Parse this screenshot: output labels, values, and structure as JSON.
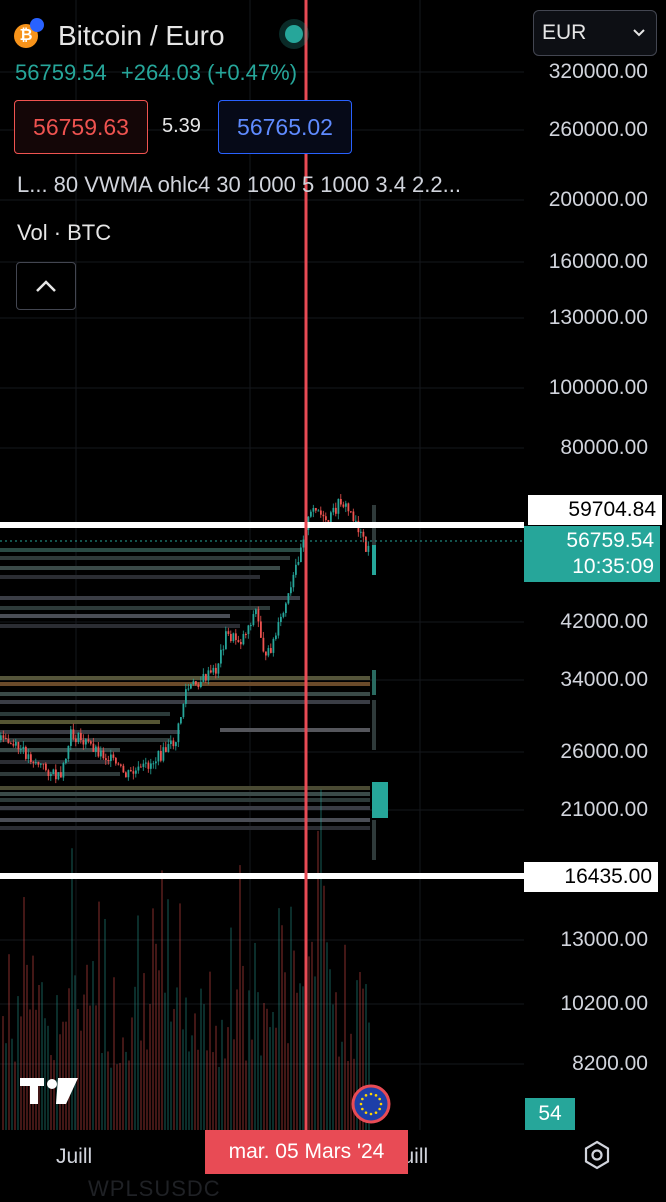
{
  "header": {
    "coin_glyph": "₿",
    "symbol_title": "Bitcoin / Euro",
    "last_price": "56759.54",
    "change": "+264.03 (+0.47%)",
    "bid": "56759.63",
    "spread": "5.39",
    "ask": "56765.02",
    "indicator_text": "L... 80 VWMA ohlc4 30 1000 5 1000 3.4 2.2...",
    "volume_label": "Vol · BTC"
  },
  "currency_select": {
    "value": "EUR"
  },
  "price_axis": {
    "labels": [
      "320000.00",
      "260000.00",
      "200000.00",
      "160000.00",
      "130000.00",
      "100000.00",
      "80000.00",
      "42000.00",
      "34000.00",
      "26000.00",
      "21000.00",
      "13000.00",
      "10200.00",
      "8200.00"
    ],
    "tags": {
      "upper_line": "59704.84",
      "current_price": "56759.54",
      "countdown": "10:35:09",
      "lower_line": "16435.00",
      "indicator_value": "54"
    }
  },
  "time_axis": {
    "left_label": "Juill",
    "crosshair_date": "mar. 05 Mars '24",
    "right_label": "Juill"
  },
  "ghost_text": "WPLSUSDC",
  "colors": {
    "up": "#26a69a",
    "down": "#ef5350",
    "crosshair": "#e84b55",
    "ask_blue": "#2962ff",
    "btc_orange": "#f7931a"
  },
  "icons": [
    "bitcoin-icon",
    "euro-icon",
    "chevron-up-icon",
    "chevron-down-icon",
    "tradingview-logo-icon",
    "eu-flag-icon",
    "settings-icon"
  ]
}
